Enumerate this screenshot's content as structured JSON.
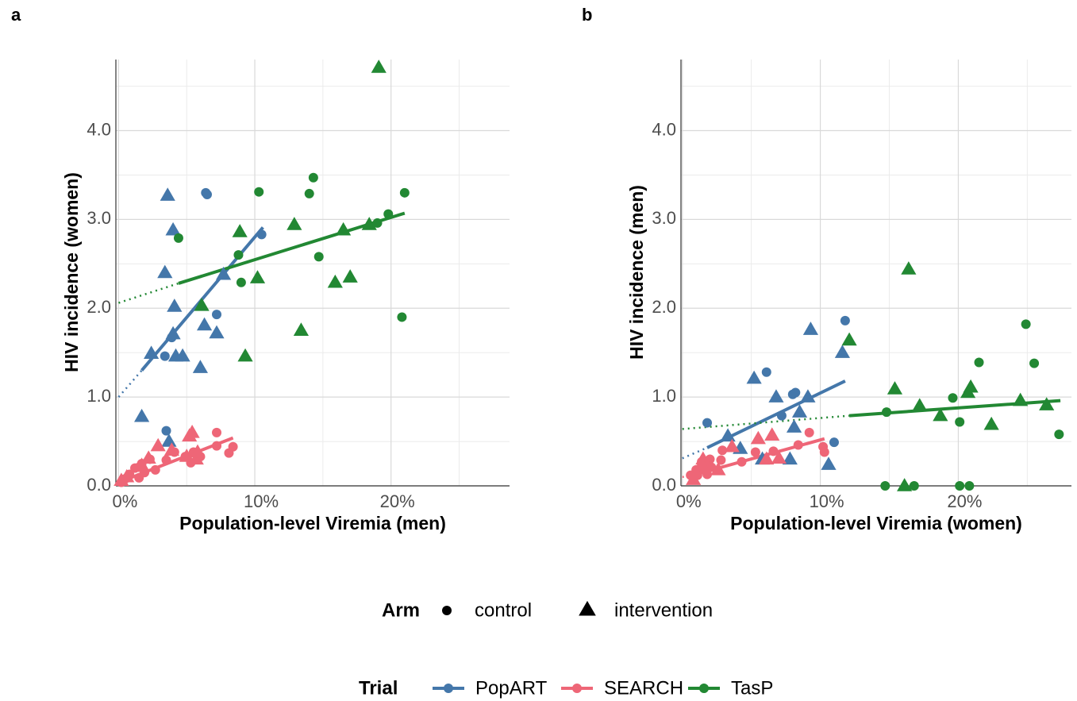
{
  "chart_data": [
    {
      "type": "scatter",
      "panel_label": "a",
      "x_label": "Population-level Viremia (men)",
      "y_label": "HIV incidence (women)",
      "xlim": [
        -0.2,
        28.7
      ],
      "ylim": [
        0,
        4.8
      ],
      "xticks": [
        {
          "value": 0,
          "label": "0%"
        },
        {
          "value": 10,
          "label": "10%"
        },
        {
          "value": 20,
          "label": "20%"
        }
      ],
      "yticks": [
        {
          "value": 0,
          "label": "0.0"
        },
        {
          "value": 1,
          "label": "1.0"
        },
        {
          "value": 2,
          "label": "2.0"
        },
        {
          "value": 3,
          "label": "3.0"
        },
        {
          "value": 4,
          "label": "4.0"
        }
      ],
      "grid": true,
      "series": [
        {
          "trial": "PopART",
          "arm": "control",
          "color": "#4477aa",
          "marker": "circle",
          "x": [
            6.4,
            6.5,
            10.5,
            3.9,
            3.4,
            7.2,
            3.5
          ],
          "values": [
            3.3,
            3.28,
            2.83,
            1.67,
            1.46,
            1.93,
            0.62
          ]
        },
        {
          "trial": "PopART",
          "arm": "intervention",
          "color": "#4477aa",
          "marker": "triangle",
          "x": [
            3.6,
            4.0,
            3.4,
            4.1,
            4.0,
            2.4,
            4.2,
            4.7,
            6.3,
            6.0,
            7.7,
            7.2,
            1.7,
            3.7
          ],
          "values": [
            3.27,
            2.88,
            2.4,
            2.02,
            1.71,
            1.49,
            1.46,
            1.46,
            1.81,
            1.33,
            2.38,
            1.72,
            0.78,
            0.5
          ]
        },
        {
          "trial": "SEARCH",
          "arm": "control",
          "color": "#ee6677",
          "marker": "circle",
          "x": [
            0.2,
            0.5,
            0.8,
            1.2,
            1.5,
            1.7,
            1.5,
            1.9,
            2.3,
            2.7,
            3.5,
            4.1,
            4.9,
            5.3,
            5.5,
            6.0,
            7.2,
            7.2,
            8.1,
            8.4
          ],
          "values": [
            0.04,
            0.08,
            0.13,
            0.2,
            0.21,
            0.25,
            0.09,
            0.15,
            0.3,
            0.18,
            0.29,
            0.38,
            0.33,
            0.26,
            0.38,
            0.33,
            0.6,
            0.45,
            0.37,
            0.44
          ]
        },
        {
          "trial": "SEARCH",
          "arm": "intervention",
          "color": "#ee6677",
          "marker": "triangle",
          "x": [
            0.2,
            0.6,
            1.7,
            2.2,
            2.9,
            3.9,
            5.2,
            5.4,
            5.0,
            5.7,
            5.8
          ],
          "values": [
            0.06,
            0.1,
            0.23,
            0.31,
            0.45,
            0.4,
            0.56,
            0.6,
            0.33,
            0.3,
            0.38
          ]
        },
        {
          "trial": "TasP",
          "arm": "control",
          "color": "#228833",
          "marker": "circle",
          "x": [
            4.4,
            10.3,
            14.0,
            14.3,
            14.7,
            9.0,
            19.8,
            19.0,
            21.0,
            20.8,
            8.8
          ],
          "values": [
            2.79,
            3.31,
            3.29,
            3.47,
            2.58,
            2.29,
            3.06,
            2.96,
            3.3,
            1.9,
            2.6
          ]
        },
        {
          "trial": "TasP",
          "arm": "intervention",
          "color": "#228833",
          "marker": "triangle",
          "x": [
            19.1,
            6.1,
            8.9,
            9.3,
            10.2,
            12.9,
            13.4,
            16.5,
            15.9,
            17.0,
            18.4
          ],
          "values": [
            4.71,
            2.03,
            2.86,
            1.46,
            2.34,
            2.94,
            1.75,
            2.88,
            2.29,
            2.35,
            2.94
          ]
        }
      ],
      "trend_lines": [
        {
          "trial": "PopART",
          "color": "#4477aa",
          "fit": {
            "x": [
              1.7,
              10.6
            ],
            "y": [
              1.3,
              2.91
            ]
          },
          "extension": {
            "x": [
              0,
              1.7
            ],
            "y": [
              1.0,
              1.3
            ]
          }
        },
        {
          "trial": "SEARCH",
          "color": "#ee6677",
          "fit": {
            "x": [
              0.2,
              8.4
            ],
            "y": [
              0.05,
              0.54
            ]
          }
        },
        {
          "trial": "TasP",
          "color": "#228833",
          "fit": {
            "x": [
              4.4,
              21.0
            ],
            "y": [
              2.28,
              3.07
            ]
          },
          "extension": {
            "x": [
              0,
              4.4
            ],
            "y": [
              2.06,
              2.28
            ]
          }
        }
      ]
    },
    {
      "type": "scatter",
      "panel_label": "b",
      "x_label": "Population-level Viremia (women)",
      "y_label": "HIV incidence (men)",
      "xlim": [
        -0.1,
        28.2
      ],
      "ylim": [
        0,
        4.8
      ],
      "xticks": [
        {
          "value": 0,
          "label": "0%"
        },
        {
          "value": 10,
          "label": "10%"
        },
        {
          "value": 20,
          "label": "20%"
        }
      ],
      "yticks": [
        {
          "value": 0,
          "label": "0.0"
        },
        {
          "value": 1,
          "label": "1.0"
        },
        {
          "value": 2,
          "label": "2.0"
        },
        {
          "value": 3,
          "label": "3.0"
        },
        {
          "value": 4,
          "label": "4.0"
        }
      ],
      "grid": true,
      "series": [
        {
          "trial": "PopART",
          "arm": "control",
          "color": "#4477aa",
          "marker": "circle",
          "x": [
            1.8,
            6.1,
            8.0,
            8.2,
            7.2,
            11.8,
            11.0
          ],
          "values": [
            0.71,
            1.28,
            1.03,
            1.05,
            0.79,
            1.86,
            0.49
          ]
        },
        {
          "trial": "PopART",
          "arm": "intervention",
          "color": "#4477aa",
          "marker": "triangle",
          "x": [
            5.2,
            9.3,
            11.6,
            6.8,
            9.1,
            3.3,
            4.2,
            5.8,
            7.8,
            8.5,
            8.1,
            10.6
          ],
          "values": [
            1.21,
            1.76,
            1.5,
            1.0,
            1.0,
            0.56,
            0.42,
            0.3,
            0.3,
            0.83,
            0.66,
            0.24
          ]
        },
        {
          "trial": "SEARCH",
          "arm": "control",
          "color": "#ee6677",
          "marker": "circle",
          "x": [
            0.6,
            1.0,
            1.4,
            1.8,
            2.1,
            2.8,
            2.9,
            4.3,
            5.3,
            6.6,
            8.4,
            9.2,
            10.2,
            10.3,
            2.0,
            1.1
          ],
          "values": [
            0.12,
            0.18,
            0.27,
            0.13,
            0.21,
            0.29,
            0.4,
            0.27,
            0.38,
            0.39,
            0.46,
            0.6,
            0.44,
            0.38,
            0.3,
            0.12
          ]
        },
        {
          "trial": "SEARCH",
          "arm": "intervention",
          "color": "#ee6677",
          "marker": "triangle",
          "x": [
            0.8,
            1.5,
            1.8,
            2.6,
            3.6,
            5.5,
            6.5,
            7.0,
            6.1,
            1.4
          ],
          "values": [
            0.07,
            0.3,
            0.22,
            0.18,
            0.44,
            0.53,
            0.57,
            0.31,
            0.3,
            0.24
          ]
        },
        {
          "trial": "TasP",
          "arm": "control",
          "color": "#228833",
          "marker": "circle",
          "x": [
            14.8,
            14.7,
            16.8,
            19.6,
            20.1,
            20.1,
            20.8,
            21.5,
            24.9,
            25.5,
            27.3
          ],
          "values": [
            0.83,
            0,
            0,
            0.99,
            0.72,
            0,
            0,
            1.39,
            1.82,
            1.38,
            0.58
          ]
        },
        {
          "trial": "TasP",
          "arm": "intervention",
          "color": "#228833",
          "marker": "triangle",
          "x": [
            16.4,
            12.1,
            15.4,
            16.1,
            17.2,
            18.7,
            20.7,
            20.9,
            22.4,
            24.5,
            26.4
          ],
          "values": [
            2.44,
            1.64,
            1.09,
            0,
            0.9,
            0.79,
            1.05,
            1.11,
            0.69,
            0.96,
            0.91
          ]
        }
      ],
      "trend_lines": [
        {
          "trial": "PopART",
          "color": "#4477aa",
          "fit": {
            "x": [
              1.8,
              11.8
            ],
            "y": [
              0.43,
              1.18
            ]
          },
          "extension": {
            "x": [
              0,
              1.8
            ],
            "y": [
              0.31,
              0.43
            ]
          }
        },
        {
          "trial": "SEARCH",
          "color": "#ee6677",
          "fit": {
            "x": [
              0.5,
              10.3
            ],
            "y": [
              0.11,
              0.53
            ]
          },
          "extension": {
            "x": [
              0,
              0.5
            ],
            "y": [
              0.1,
              0.11
            ]
          }
        },
        {
          "trial": "TasP",
          "color": "#228833",
          "fit": {
            "x": [
              12.1,
              27.4
            ],
            "y": [
              0.79,
              0.96
            ]
          },
          "extension": {
            "x": [
              0,
              12.1
            ],
            "y": [
              0.64,
              0.79
            ]
          }
        }
      ]
    }
  ],
  "legend": {
    "arm_title": "Arm",
    "arms": [
      "control",
      "intervention"
    ],
    "trial_title": "Trial",
    "trials": [
      {
        "name": "PopART",
        "color": "#4477aa"
      },
      {
        "name": "SEARCH",
        "color": "#ee6677"
      },
      {
        "name": "TasP",
        "color": "#228833"
      }
    ]
  }
}
